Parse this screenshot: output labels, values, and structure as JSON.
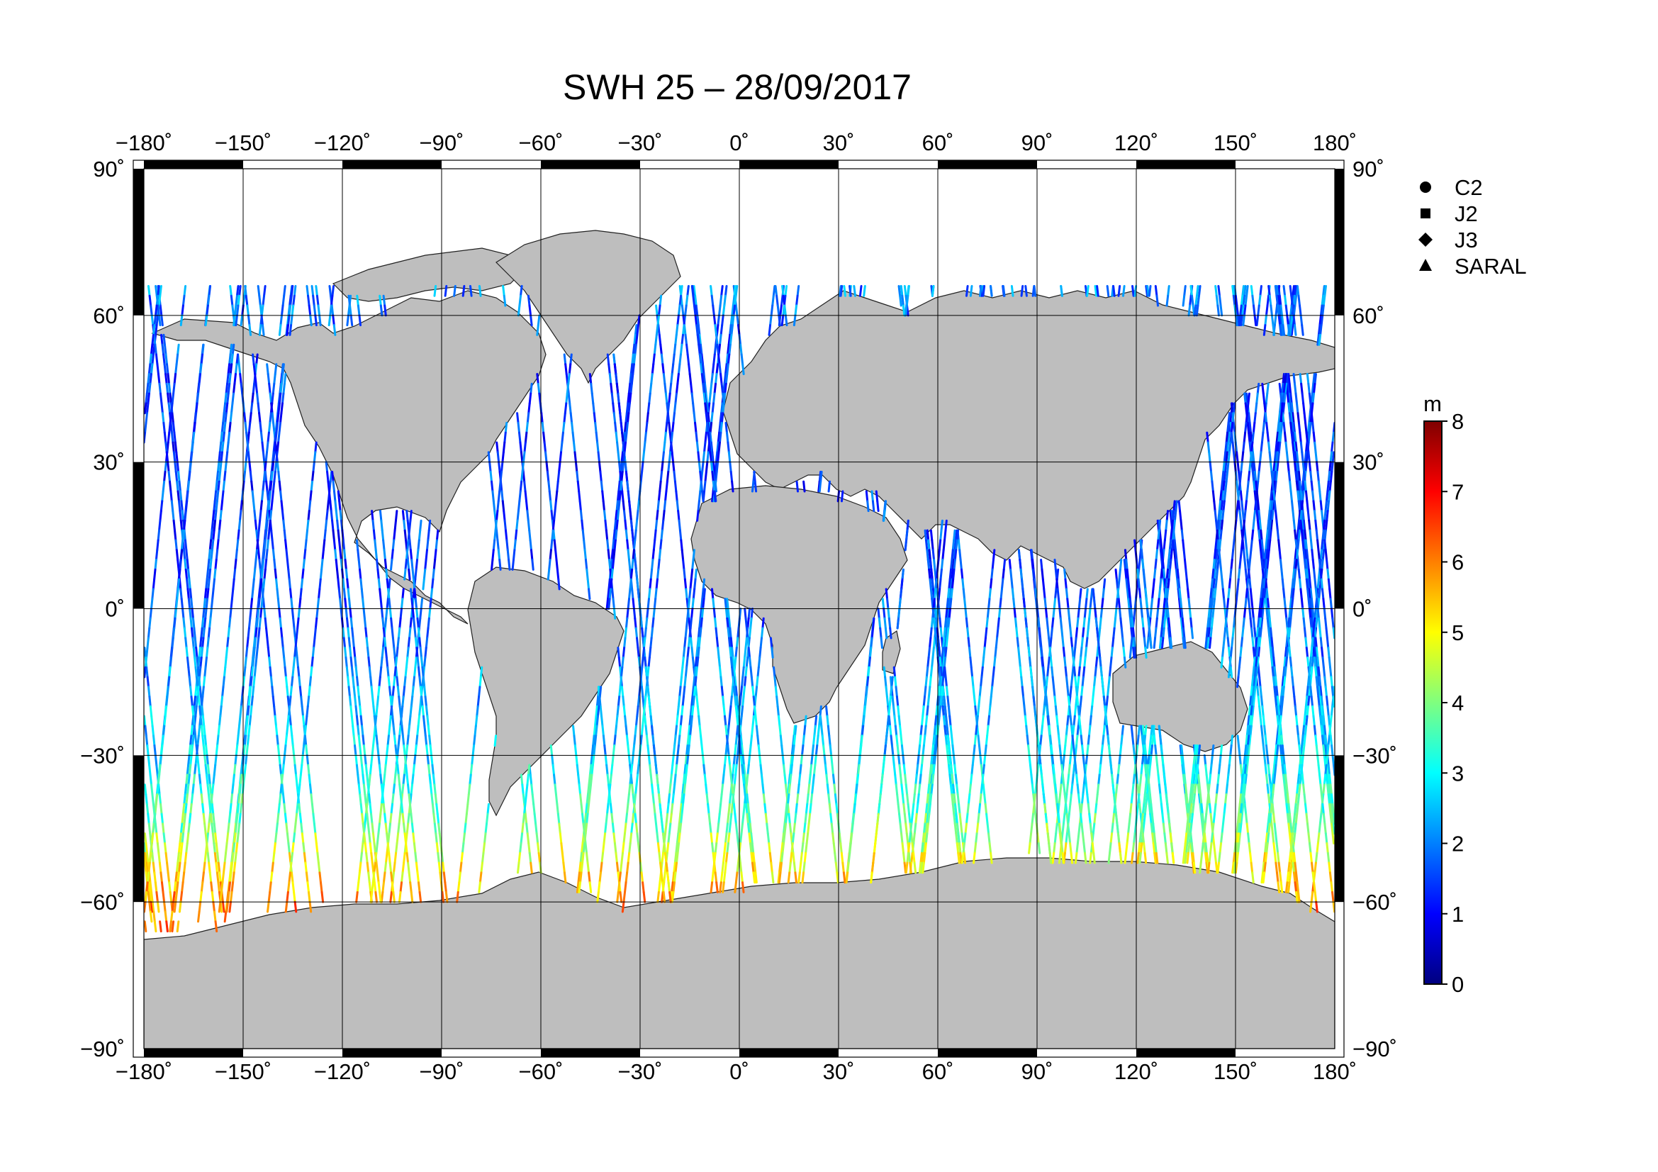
{
  "title": "SWH 25 – 28/09/2017",
  "map": {
    "lon_range": [
      -180,
      180
    ],
    "lat_range": [
      -90,
      90
    ],
    "lon_ticks": [
      "−180˚",
      "−150˚",
      "−120˚",
      "−90˚",
      "−60˚",
      "−30˚",
      "0˚",
      "30˚",
      "60˚",
      "90˚",
      "120˚",
      "150˚",
      "180˚"
    ],
    "lat_ticks": [
      "90˚",
      "60˚",
      "30˚",
      "0˚",
      "−30˚",
      "−60˚",
      "−90˚"
    ],
    "land_color": "#bebebe",
    "ocean_color": "#ffffff"
  },
  "legend": {
    "items": [
      {
        "symbol": "circle",
        "label": "C2"
      },
      {
        "symbol": "square",
        "label": "J2"
      },
      {
        "symbol": "diamond",
        "label": "J3"
      },
      {
        "symbol": "triangle",
        "label": "SARAL"
      }
    ]
  },
  "colorbar": {
    "unit": "m",
    "min": 0,
    "max": 8,
    "ticks": [
      "0",
      "1",
      "2",
      "3",
      "4",
      "5",
      "6",
      "7",
      "8"
    ],
    "colormap": "jet"
  },
  "chart_data": {
    "type": "map",
    "variable": "SWH",
    "unit": "m",
    "color_range": [
      0,
      8
    ],
    "swh_latitude_profile": [
      {
        "lat": 65,
        "swh": 2.0
      },
      {
        "lat": 50,
        "swh": 1.6
      },
      {
        "lat": 30,
        "swh": 1.5
      },
      {
        "lat": 10,
        "swh": 1.5
      },
      {
        "lat": -10,
        "swh": 2.0
      },
      {
        "lat": -30,
        "swh": 2.6
      },
      {
        "lat": -45,
        "swh": 3.8
      },
      {
        "lat": -55,
        "swh": 5.2
      },
      {
        "lat": -62,
        "swh": 6.0
      }
    ]
  }
}
